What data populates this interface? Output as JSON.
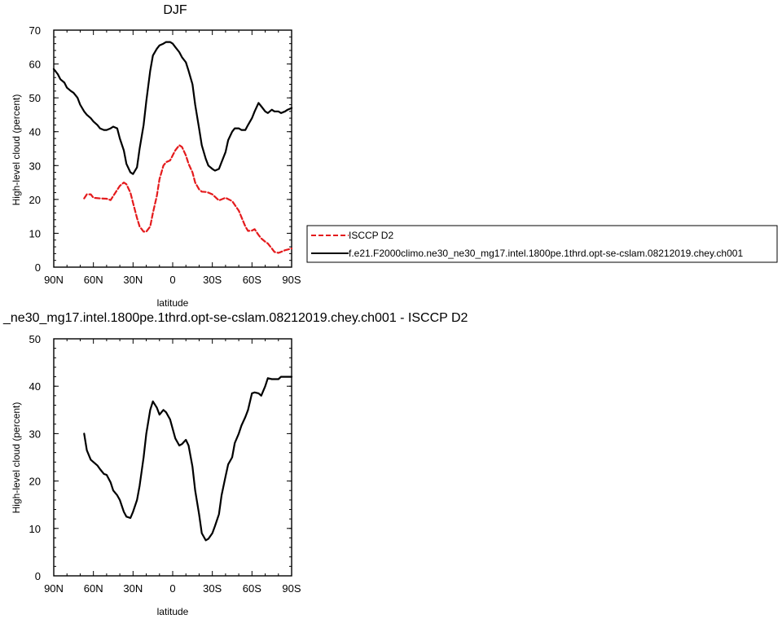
{
  "chart_data": [
    {
      "type": "line",
      "title": "DJF",
      "xlabel": "latitude",
      "ylabel": "High-level cloud (percent)",
      "xlim": [
        90,
        -90
      ],
      "ylim": [
        0,
        70
      ],
      "x_ticks": [
        90,
        60,
        30,
        0,
        -30,
        -60,
        -90
      ],
      "x_tick_labels": [
        "90N",
        "60N",
        "30N",
        "0",
        "30S",
        "60S",
        "90S"
      ],
      "y_ticks": [
        0,
        10,
        20,
        30,
        40,
        50,
        60,
        70
      ],
      "y_tick_labels": [
        "0",
        "10",
        "20",
        "30",
        "40",
        "50",
        "60",
        "70"
      ],
      "legend_position": "right",
      "series": [
        {
          "name": "ISCCP D2",
          "color": "#e41a1c",
          "dash": "dashed",
          "x": [
            67,
            65,
            62,
            60,
            55,
            50,
            47,
            45,
            40,
            37,
            35,
            32,
            30,
            27,
            25,
            22,
            20,
            17,
            15,
            12,
            10,
            7,
            5,
            2,
            0,
            -2,
            -5,
            -7,
            -10,
            -12,
            -15,
            -17,
            -20,
            -22,
            -25,
            -27,
            -30,
            -35,
            -40,
            -45,
            -50,
            -55,
            -57,
            -60,
            -62,
            -65,
            -67,
            -70,
            -72,
            -75,
            -77,
            -80,
            -82,
            -85,
            -87,
            -90
          ],
          "y": [
            20.3,
            21.5,
            21.5,
            20.5,
            20.3,
            20.2,
            19.8,
            21,
            24,
            25,
            24.5,
            22,
            19,
            14.5,
            12,
            10.5,
            10.5,
            12,
            16,
            21,
            26,
            30,
            31,
            31.5,
            33,
            34.5,
            36,
            35.5,
            33,
            30.5,
            28,
            25,
            23,
            22.3,
            22.2,
            22,
            21.5,
            19.7,
            20.5,
            19.5,
            16.7,
            12,
            10.7,
            10.8,
            11.2,
            9.5,
            8.5,
            7.5,
            7,
            5.5,
            4.5,
            4.2,
            4.5,
            5,
            5.2,
            5.5
          ]
        },
        {
          "name": "f.e21.F2000climo.ne30_ne30_mg17.intel.1800pe.1thrd.opt-se-cslam.08212019.chey.ch001",
          "color": "#000000",
          "dash": "solid",
          "x": [
            90,
            87,
            85,
            82,
            80,
            77,
            75,
            72,
            70,
            67,
            65,
            62,
            60,
            57,
            55,
            52,
            50,
            47,
            45,
            42,
            40,
            37,
            35,
            32,
            30,
            27,
            25,
            22,
            20,
            17,
            15,
            12,
            10,
            7,
            5,
            2,
            0,
            -2,
            -5,
            -7,
            -10,
            -12,
            -15,
            -17,
            -20,
            -22,
            -25,
            -27,
            -30,
            -32,
            -35,
            -37,
            -40,
            -42,
            -45,
            -47,
            -50,
            -52,
            -55,
            -57,
            -60,
            -62,
            -65,
            -67,
            -70,
            -72,
            -75,
            -77,
            -80,
            -82,
            -85,
            -87,
            -90
          ],
          "y": [
            58.5,
            57,
            55.5,
            54.5,
            53,
            52,
            51.5,
            50,
            48,
            46,
            45,
            44,
            43,
            42,
            41,
            40.5,
            40.5,
            41,
            41.5,
            41,
            38,
            34.5,
            30.5,
            28,
            27.5,
            29.5,
            35,
            42,
            49,
            58,
            62.5,
            64.5,
            65.5,
            66,
            66.5,
            66.5,
            66,
            65,
            63.5,
            62,
            60.5,
            58,
            54,
            48,
            41,
            36,
            32,
            30,
            29,
            28.5,
            29,
            31,
            34,
            37.5,
            40,
            41,
            41,
            40.5,
            40.5,
            42,
            44,
            46,
            48.5,
            47.5,
            46,
            45.5,
            46.5,
            46,
            46,
            45.5,
            46,
            46.5,
            47
          ]
        }
      ]
    },
    {
      "type": "line",
      "title": "_ne30_mg17.intel.1800pe.1thrd.opt-se-cslam.08212019.chey.ch001 - ISCCP D2",
      "xlabel": "latitude",
      "ylabel": "High-level cloud (percent)",
      "xlim": [
        90,
        -90
      ],
      "ylim": [
        0,
        50
      ],
      "x_ticks": [
        90,
        60,
        30,
        0,
        -30,
        -60,
        -90
      ],
      "x_tick_labels": [
        "90N",
        "60N",
        "30N",
        "0",
        "30S",
        "60S",
        "90S"
      ],
      "y_ticks": [
        0,
        10,
        20,
        30,
        40,
        50
      ],
      "y_tick_labels": [
        "0",
        "10",
        "20",
        "30",
        "40",
        "50"
      ],
      "series": [
        {
          "color": "#000000",
          "dash": "solid",
          "x": [
            67,
            65,
            62,
            60,
            57,
            55,
            52,
            50,
            47,
            45,
            42,
            40,
            37,
            35,
            32,
            30,
            27,
            25,
            22,
            20,
            17,
            15,
            12,
            10,
            7,
            5,
            2,
            0,
            -2,
            -5,
            -7,
            -10,
            -12,
            -15,
            -17,
            -20,
            -22,
            -25,
            -27,
            -30,
            -32,
            -35,
            -37,
            -40,
            -42,
            -45,
            -47,
            -50,
            -52,
            -55,
            -57,
            -60,
            -62,
            -65,
            -67,
            -70,
            -72,
            -75,
            -77,
            -80,
            -82,
            -85,
            -87,
            -90
          ],
          "y": [
            30,
            26.5,
            24.5,
            24,
            23.3,
            22.5,
            21.5,
            21.3,
            19.7,
            18,
            17,
            16,
            13.5,
            12.5,
            12.2,
            13.5,
            16,
            19,
            25,
            30,
            35,
            36.8,
            35.5,
            34,
            35,
            34.5,
            33,
            31,
            29,
            27.5,
            27.8,
            28.7,
            27.5,
            23,
            18,
            13,
            9,
            7.5,
            7.8,
            9,
            10.5,
            13,
            17,
            21,
            23.5,
            25,
            28,
            30,
            31.7,
            33.5,
            35,
            38.5,
            38.7,
            38.5,
            38,
            40,
            41.7,
            41.5,
            41.5,
            41.5,
            42,
            42,
            42,
            42
          ]
        }
      ]
    }
  ]
}
